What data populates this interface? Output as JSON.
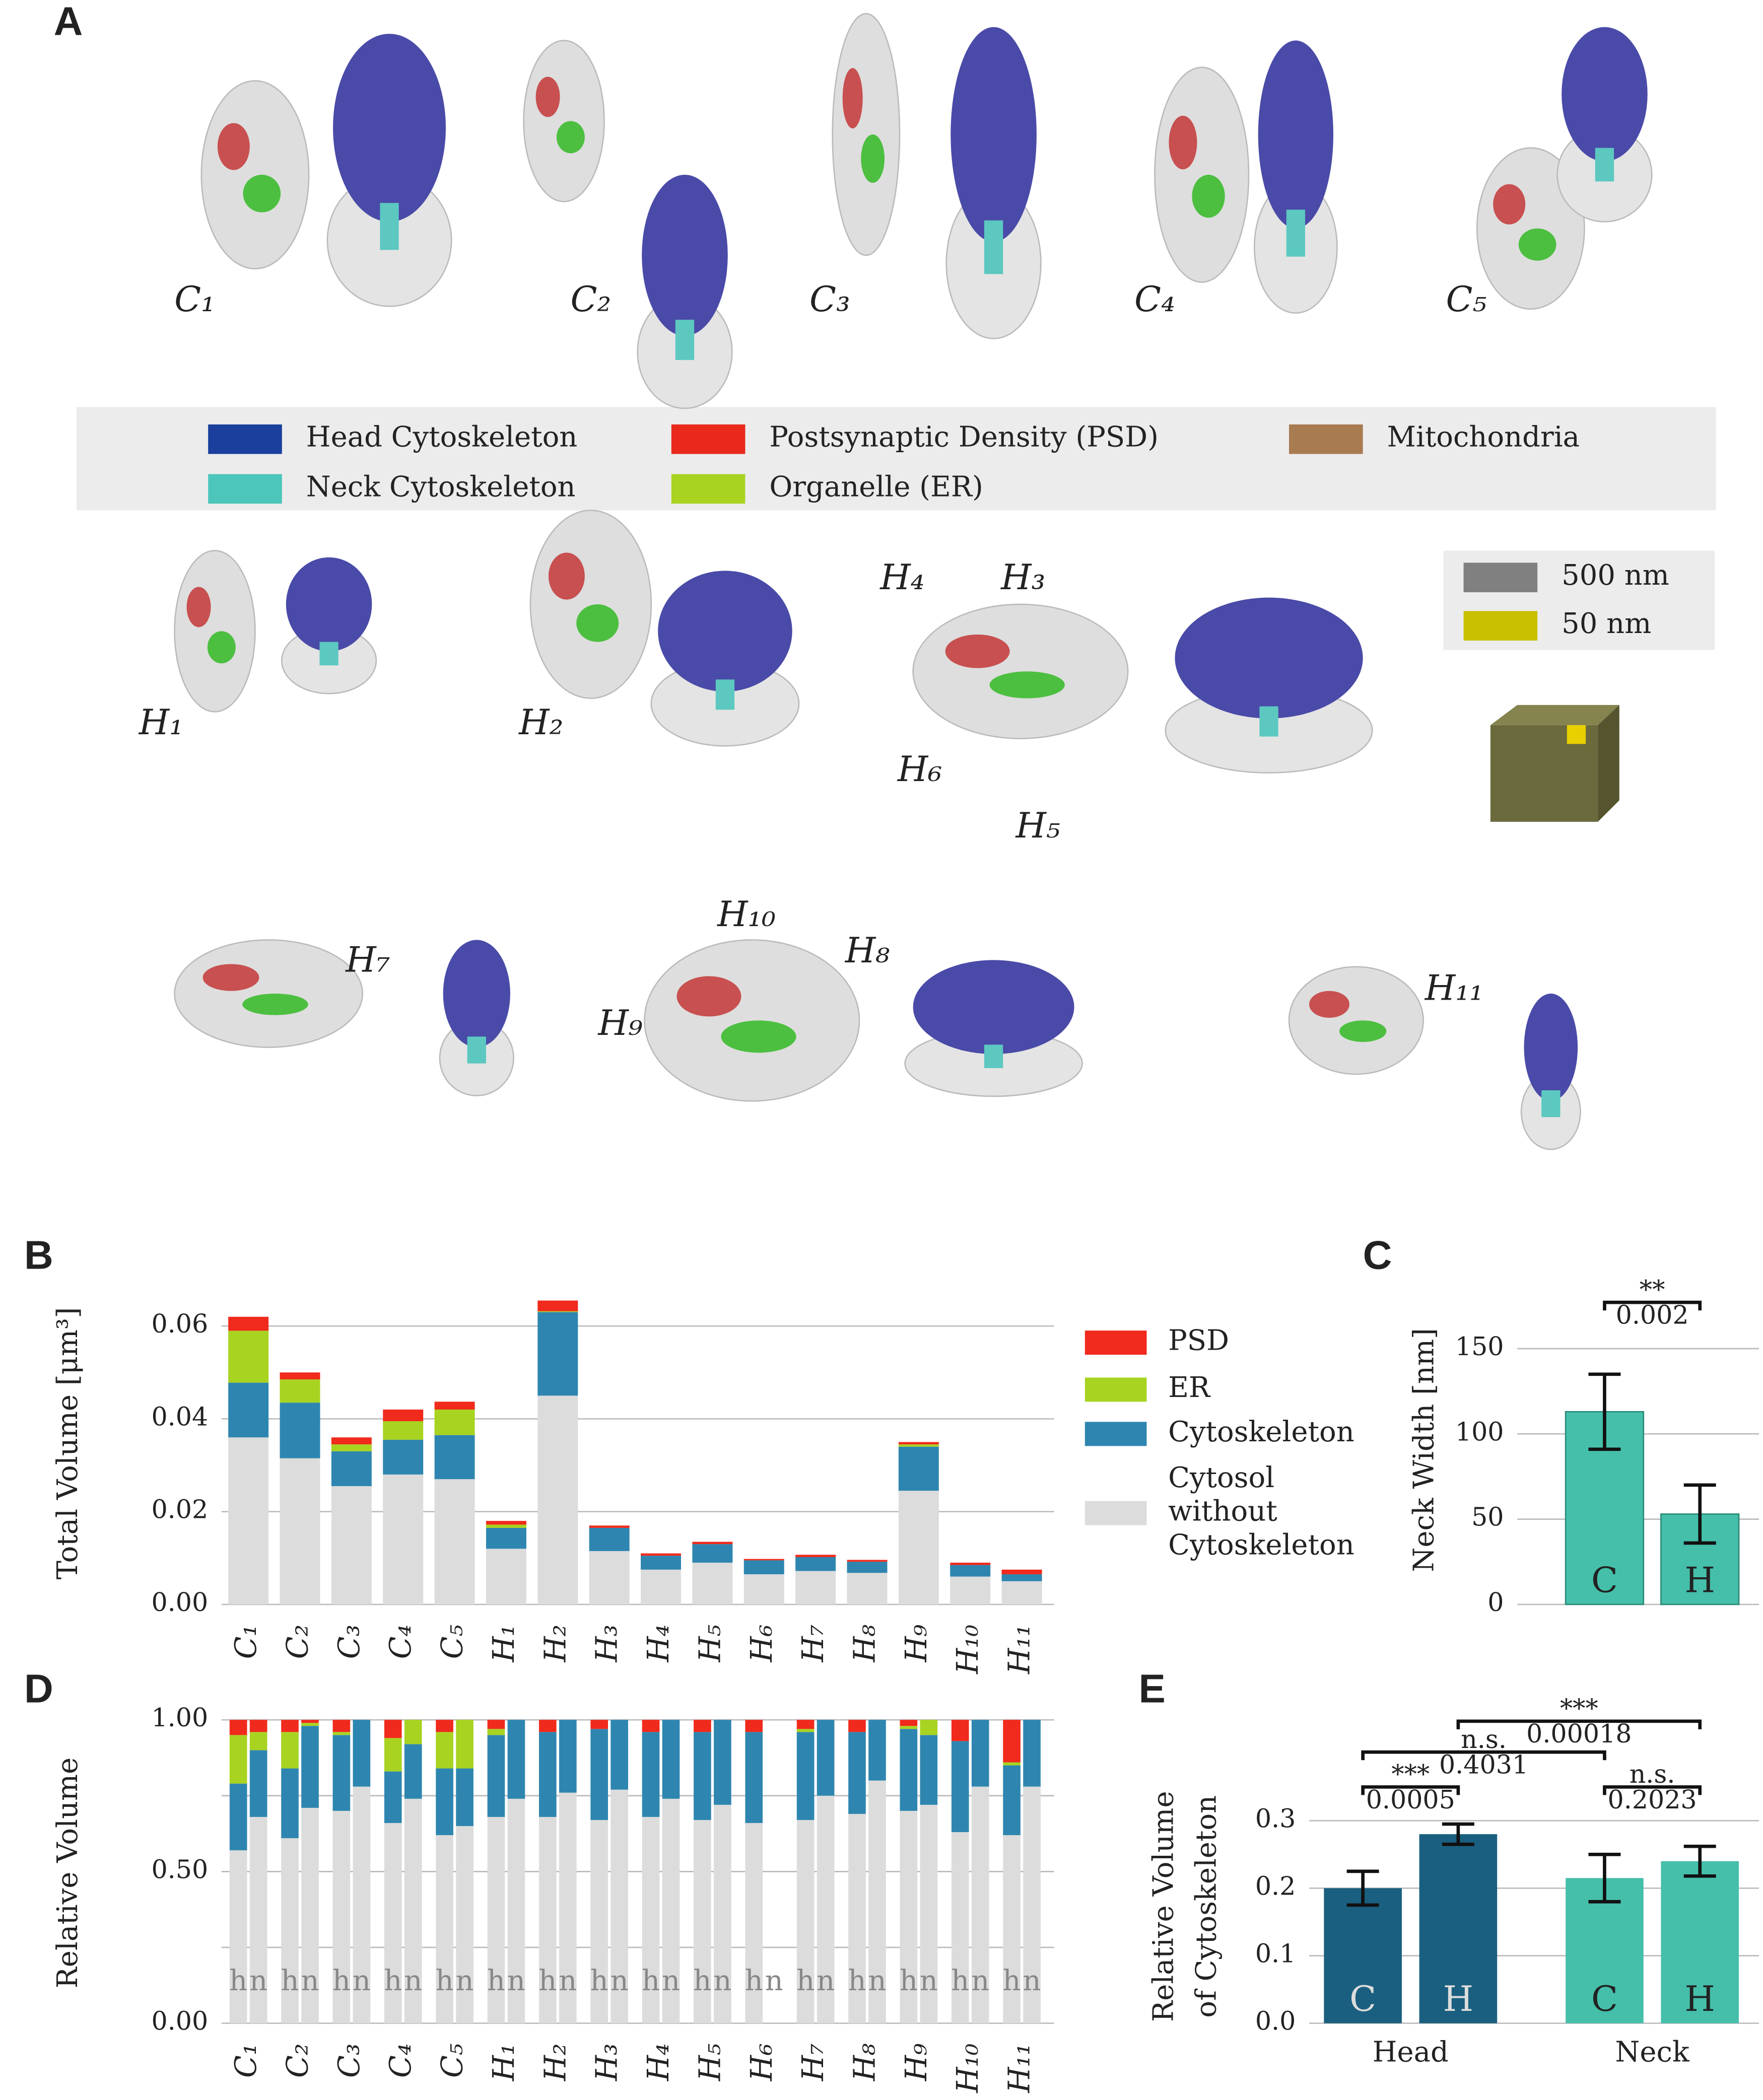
{
  "panels": {
    "a": "A",
    "b": "B",
    "c": "C",
    "d": "D",
    "e": "E"
  },
  "panel_a": {
    "spine_labels": [
      "C₁",
      "C₂",
      "C₃",
      "C₄",
      "C₅",
      "H₁",
      "H₂",
      "H₃",
      "H₄",
      "H₅",
      "H₆",
      "H₇",
      "H₈",
      "H₉",
      "H₁₀",
      "H₁₁"
    ],
    "legend": [
      {
        "name": "Head Cytoskeleton",
        "color": "#1a3f9c"
      },
      {
        "name": "Postsynaptic Density (PSD)",
        "color": "#e8291c"
      },
      {
        "name": "Mitochondria",
        "color": "#a87b50"
      },
      {
        "name": "Neck Cytoskeleton",
        "color": "#4cc6bb"
      },
      {
        "name": "Organelle (ER)",
        "color": "#a8d321"
      }
    ],
    "scale_legend": [
      {
        "name": "500 nm",
        "color": "#808080"
      },
      {
        "name": "50 nm",
        "color": "#c8c000"
      }
    ]
  },
  "chart_data": [
    {
      "type": "stacked_bar",
      "ylabel": "Total Volume [μm³]",
      "categories": [
        "C₁",
        "C₂",
        "C₃",
        "C₄",
        "C₅",
        "H₁",
        "H₂",
        "H₃",
        "H₄",
        "H₅",
        "H₆",
        "H₇",
        "H₈",
        "H₉",
        "H₁₀",
        "H₁₁"
      ],
      "series": [
        {
          "name": "Cytosol without Cytoskeleton",
          "color": "#dcdcdc",
          "values": [
            0.036,
            0.0315,
            0.0255,
            0.028,
            0.027,
            0.012,
            0.045,
            0.0115,
            0.0075,
            0.009,
            0.0065,
            0.0072,
            0.0068,
            0.0245,
            0.006,
            0.005
          ]
        },
        {
          "name": "Cytoskeleton",
          "color": "#2e86b0",
          "values": [
            0.0118,
            0.012,
            0.0075,
            0.0075,
            0.0095,
            0.0045,
            0.018,
            0.005,
            0.003,
            0.004,
            0.003,
            0.003,
            0.0024,
            0.0095,
            0.0025,
            0.0015
          ]
        },
        {
          "name": "ER",
          "color": "#a8d321",
          "values": [
            0.0112,
            0.005,
            0.0015,
            0.004,
            0.0055,
            0.0007,
            0.0002,
            0,
            0,
            0,
            0,
            0,
            0,
            0.0005,
            0,
            0
          ]
        },
        {
          "name": "PSD",
          "color": "#f02a1c",
          "values": [
            0.003,
            0.0015,
            0.0015,
            0.0025,
            0.0017,
            0.0008,
            0.0023,
            0.0005,
            0.0005,
            0.0005,
            0.0003,
            0.0005,
            0.0004,
            0.0005,
            0.0005,
            0.001
          ]
        }
      ],
      "ylim": [
        0,
        0.068
      ],
      "yticks": [
        {
          "value": 0,
          "label": "0.00"
        },
        {
          "value": 0.02,
          "label": "0.02"
        },
        {
          "value": 0.04,
          "label": "0.04"
        },
        {
          "value": 0.06,
          "label": "0.06"
        }
      ],
      "grid": true
    },
    {
      "type": "bar_error",
      "ylabel": "Neck Width [nm]",
      "categories": [
        "C",
        "H"
      ],
      "values": [
        113,
        53
      ],
      "errors": [
        22,
        17
      ],
      "color": "#45bfa9",
      "ylim": [
        0,
        185
      ],
      "yticks": [
        0,
        50,
        100,
        150
      ],
      "grid": true,
      "annotation": {
        "stars": "**",
        "p": "0.002"
      }
    },
    {
      "type": "paired_stacked_bar",
      "ylabel": "Relative Volume",
      "categories": [
        "C₁",
        "C₂",
        "C₃",
        "C₄",
        "C₅",
        "H₁",
        "H₂",
        "H₃",
        "H₄",
        "H₅",
        "H₆",
        "H₇",
        "H₈",
        "H₉",
        "H₁₀",
        "H₁₁"
      ],
      "stacks": [
        {
          "label": "h",
          "layers": [
            {
              "color": "#dcdcdc",
              "values": [
                0.57,
                0.61,
                0.7,
                0.66,
                0.62,
                0.68,
                0.68,
                0.67,
                0.68,
                0.67,
                0.66,
                0.67,
                0.69,
                0.7,
                0.63,
                0.62
              ]
            },
            {
              "color": "#2e86b0",
              "values": [
                0.22,
                0.23,
                0.25,
                0.17,
                0.22,
                0.27,
                0.28,
                0.3,
                0.28,
                0.29,
                0.3,
                0.29,
                0.27,
                0.27,
                0.3,
                0.23
              ]
            },
            {
              "color": "#a8d321",
              "values": [
                0.16,
                0.12,
                0.01,
                0.11,
                0.12,
                0.02,
                0,
                0,
                0,
                0,
                0,
                0.01,
                0,
                0.01,
                0,
                0.01
              ]
            },
            {
              "color": "#f02a1c",
              "values": [
                0.05,
                0.04,
                0.04,
                0.06,
                0.04,
                0.03,
                0.04,
                0.03,
                0.04,
                0.04,
                0.04,
                0.03,
                0.04,
                0.02,
                0.07,
                0.14
              ]
            }
          ]
        },
        {
          "label": "n",
          "layers": [
            {
              "color": "#dcdcdc",
              "values": [
                0.68,
                0.71,
                0.78,
                0.74,
                0.65,
                0.74,
                0.76,
                0.77,
                0.74,
                0.72,
                null,
                0.75,
                0.8,
                0.72,
                0.78,
                0.78
              ]
            },
            {
              "color": "#2e86b0",
              "values": [
                0.22,
                0.27,
                0.22,
                0.18,
                0.19,
                0.26,
                0.24,
                0.23,
                0.26,
                0.28,
                null,
                0.25,
                0.2,
                0.23,
                0.22,
                0.22
              ]
            },
            {
              "color": "#a8d321",
              "values": [
                0.06,
                0.01,
                0,
                0.08,
                0.16,
                0,
                0,
                0,
                0,
                0,
                null,
                0,
                0,
                0.05,
                0,
                0
              ]
            },
            {
              "color": "#f02a1c",
              "values": [
                0.04,
                0.01,
                0,
                0,
                0,
                0,
                0,
                0,
                0,
                0,
                null,
                0,
                0,
                0,
                0,
                0
              ]
            }
          ]
        }
      ],
      "ylim": [
        0,
        1
      ],
      "yticks": [
        {
          "value": 0,
          "label": "0.00"
        },
        {
          "value": 0.5,
          "label": "0.50"
        },
        {
          "value": 1,
          "label": "1.00"
        }
      ],
      "minor_yticks": [
        0.25,
        0.75
      ],
      "grid": true
    },
    {
      "type": "grouped_bar_error",
      "ylabel": [
        "Relative Volume",
        "of Cytoskeleton"
      ],
      "groups": [
        {
          "name": "Head",
          "color": "#1a5f7f",
          "bar_labels": [
            "C",
            "H"
          ],
          "values": [
            0.2,
            0.28
          ],
          "errors": [
            0.025,
            0.015
          ]
        },
        {
          "name": "Neck",
          "color": "#45bfa9",
          "bar_labels": [
            "C",
            "H"
          ],
          "values": [
            0.215,
            0.24
          ],
          "errors": [
            0.035,
            0.022
          ]
        }
      ],
      "ylim": [
        0,
        0.33
      ],
      "yticks": [
        {
          "value": 0,
          "label": "0.0"
        },
        0.1,
        0.2,
        0.3
      ],
      "grid": true,
      "annotations": [
        {
          "stars": "***",
          "p": "0.00018"
        },
        {
          "stars": "n.s.",
          "p": "0.4031"
        },
        {
          "stars": "***",
          "p": "0.0005"
        },
        {
          "stars": "n.s.",
          "p": "0.2023"
        }
      ]
    }
  ]
}
